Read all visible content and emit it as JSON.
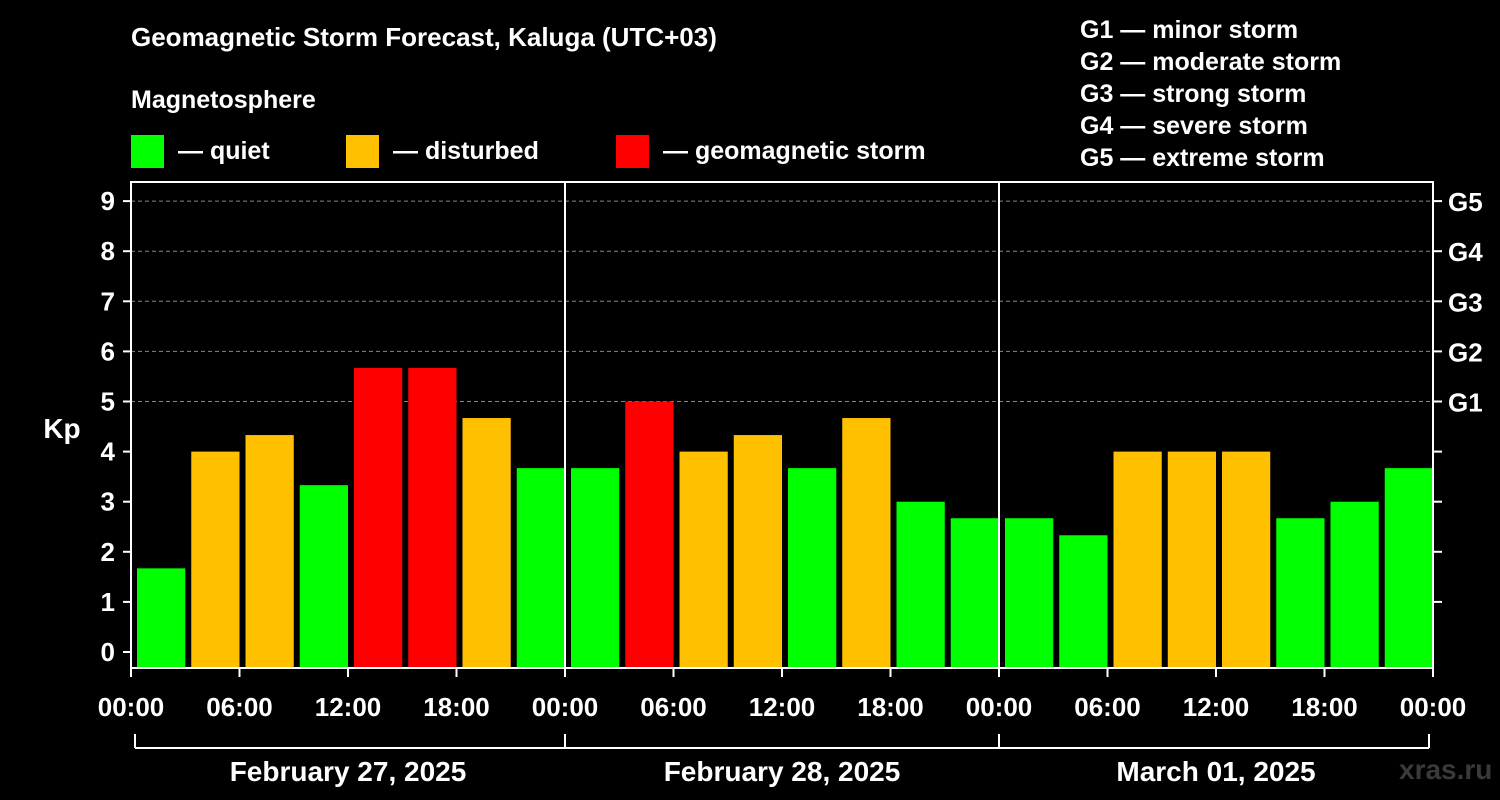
{
  "title": "Geomagnetic Storm Forecast, Kaluga (UTC+03)",
  "legend": {
    "heading": "Magnetosphere",
    "items": [
      {
        "label": "— quiet",
        "color": "#00ff00"
      },
      {
        "label": "— disturbed",
        "color": "#ffc000"
      },
      {
        "label": "— geomagnetic storm",
        "color": "#ff0000"
      }
    ]
  },
  "g_scale": [
    "G1 — minor storm",
    "G2 — moderate storm",
    "G3 — strong storm",
    "G4 — severe storm",
    "G5 — extreme storm"
  ],
  "watermark": "xras.ru",
  "chart_data": {
    "type": "bar",
    "ylabel": "Kp",
    "ylim": [
      0,
      9
    ],
    "y_ticks": [
      0,
      1,
      2,
      3,
      4,
      5,
      6,
      7,
      8,
      9
    ],
    "right_axis_labels": [
      {
        "kp": 5,
        "label": "G1"
      },
      {
        "kp": 6,
        "label": "G2"
      },
      {
        "kp": 7,
        "label": "G3"
      },
      {
        "kp": 8,
        "label": "G4"
      },
      {
        "kp": 9,
        "label": "G5"
      }
    ],
    "grid": true,
    "x_tick_labels": [
      "00:00",
      "06:00",
      "12:00",
      "18:00",
      "00:00",
      "06:00",
      "12:00",
      "18:00",
      "00:00",
      "06:00",
      "12:00",
      "18:00",
      "00:00"
    ],
    "days": [
      "February 27, 2025",
      "February 28, 2025",
      "March 01, 2025"
    ],
    "values": [
      1.67,
      4.0,
      4.33,
      3.33,
      5.67,
      5.67,
      4.67,
      3.67,
      3.67,
      5.0,
      4.0,
      4.33,
      3.67,
      4.67,
      3.0,
      2.67,
      2.67,
      2.33,
      4.0,
      4.0,
      4.0,
      2.67,
      3.0,
      3.67
    ],
    "status": [
      "quiet",
      "disturbed",
      "disturbed",
      "quiet",
      "storm",
      "storm",
      "disturbed",
      "quiet",
      "quiet",
      "storm",
      "disturbed",
      "disturbed",
      "quiet",
      "disturbed",
      "quiet",
      "quiet",
      "quiet",
      "quiet",
      "disturbed",
      "disturbed",
      "disturbed",
      "quiet",
      "quiet",
      "quiet"
    ],
    "colors": {
      "quiet": "#00ff00",
      "disturbed": "#ffc000",
      "storm": "#ff0000",
      "grid": "#888888",
      "axis": "#ffffff"
    }
  }
}
